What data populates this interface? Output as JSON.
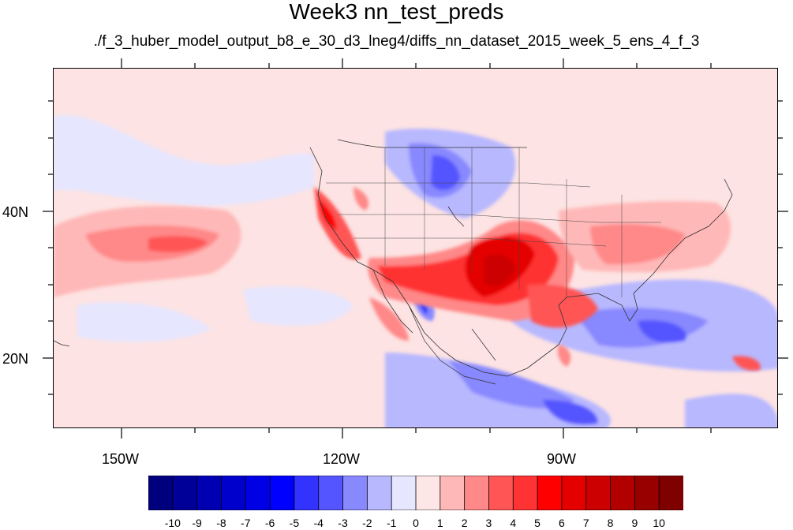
{
  "title": "Week3 nn_test_preds",
  "subtitle": "./f_3_huber_model_output_b8_e_30_d3_lneg4/diffs_nn_dataset_2015_week_5_ens_4_f_3",
  "map": {
    "lat_labels": [
      "40N",
      "20N"
    ],
    "lon_labels": [
      "150W",
      "120W",
      "90W"
    ],
    "projection": "cylindrical-equidistant",
    "background_value": 0.5
  },
  "colorbar": {
    "labels": [
      "-10",
      "-9",
      "-8",
      "-7",
      "-6",
      "-5",
      "-4",
      "-3",
      "-2",
      "-1",
      "0",
      "1",
      "2",
      "3",
      "4",
      "5",
      "6",
      "7",
      "8",
      "9",
      "10"
    ],
    "colors": [
      "#00007f",
      "#000098",
      "#0000b2",
      "#0000cc",
      "#0000e5",
      "#0000ff",
      "#3333ff",
      "#5555ff",
      "#8888ff",
      "#b8b8ff",
      "#e6e6ff",
      "#ffe6e6",
      "#ffb8b8",
      "#ff8888",
      "#ff5555",
      "#ff3333",
      "#ff0000",
      "#e50000",
      "#cc0000",
      "#b20000",
      "#980000",
      "#7f0000"
    ]
  }
}
